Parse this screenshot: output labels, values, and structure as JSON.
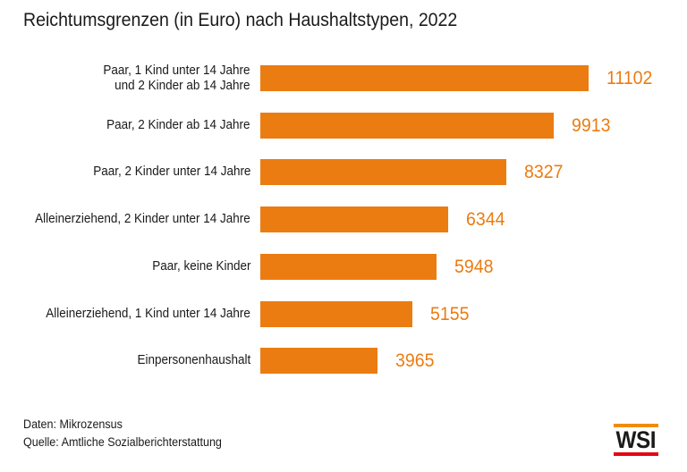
{
  "title": "Reichtumsgrenzen (in Euro) nach Haushaltstypen, 2022",
  "chart_data": {
    "type": "bar",
    "orientation": "horizontal",
    "title": "Reichtumsgrenzen (in Euro) nach Haushaltstypen, 2022",
    "categories": [
      "Paar, 1 Kind unter 14 Jahre\nund 2 Kinder ab 14 Jahre",
      "Paar, 2 Kinder ab 14 Jahre",
      "Paar, 2 Kinder unter 14 Jahre",
      "Alleinerziehend, 2 Kinder unter 14 Jahre",
      "Paar, keine Kinder",
      "Alleinerziehend, 1 Kind unter 14 Jahre",
      "Einpersonenhaushalt"
    ],
    "values": [
      11102,
      9913,
      8327,
      6344,
      5948,
      5155,
      3965
    ],
    "xlabel": "",
    "ylabel": "",
    "xlim": [
      0,
      11102
    ],
    "grid": false,
    "legend": "none",
    "bar_color": "#EB7C11",
    "value_label_color": "#EB7C11",
    "value_labels_shown": true
  },
  "footer": {
    "line1": "Daten: Mikrozensus",
    "line2": "Quelle: Amtliche Sozialberichterstattung"
  },
  "logo": {
    "text": "WSI",
    "top_bar_color": "#F08C00",
    "bottom_bar_color": "#E30613",
    "text_color": "#1a1a1a"
  },
  "colors": {
    "background": "#ffffff",
    "text": "#1a1a1a",
    "accent_orange": "#EB7C11"
  }
}
